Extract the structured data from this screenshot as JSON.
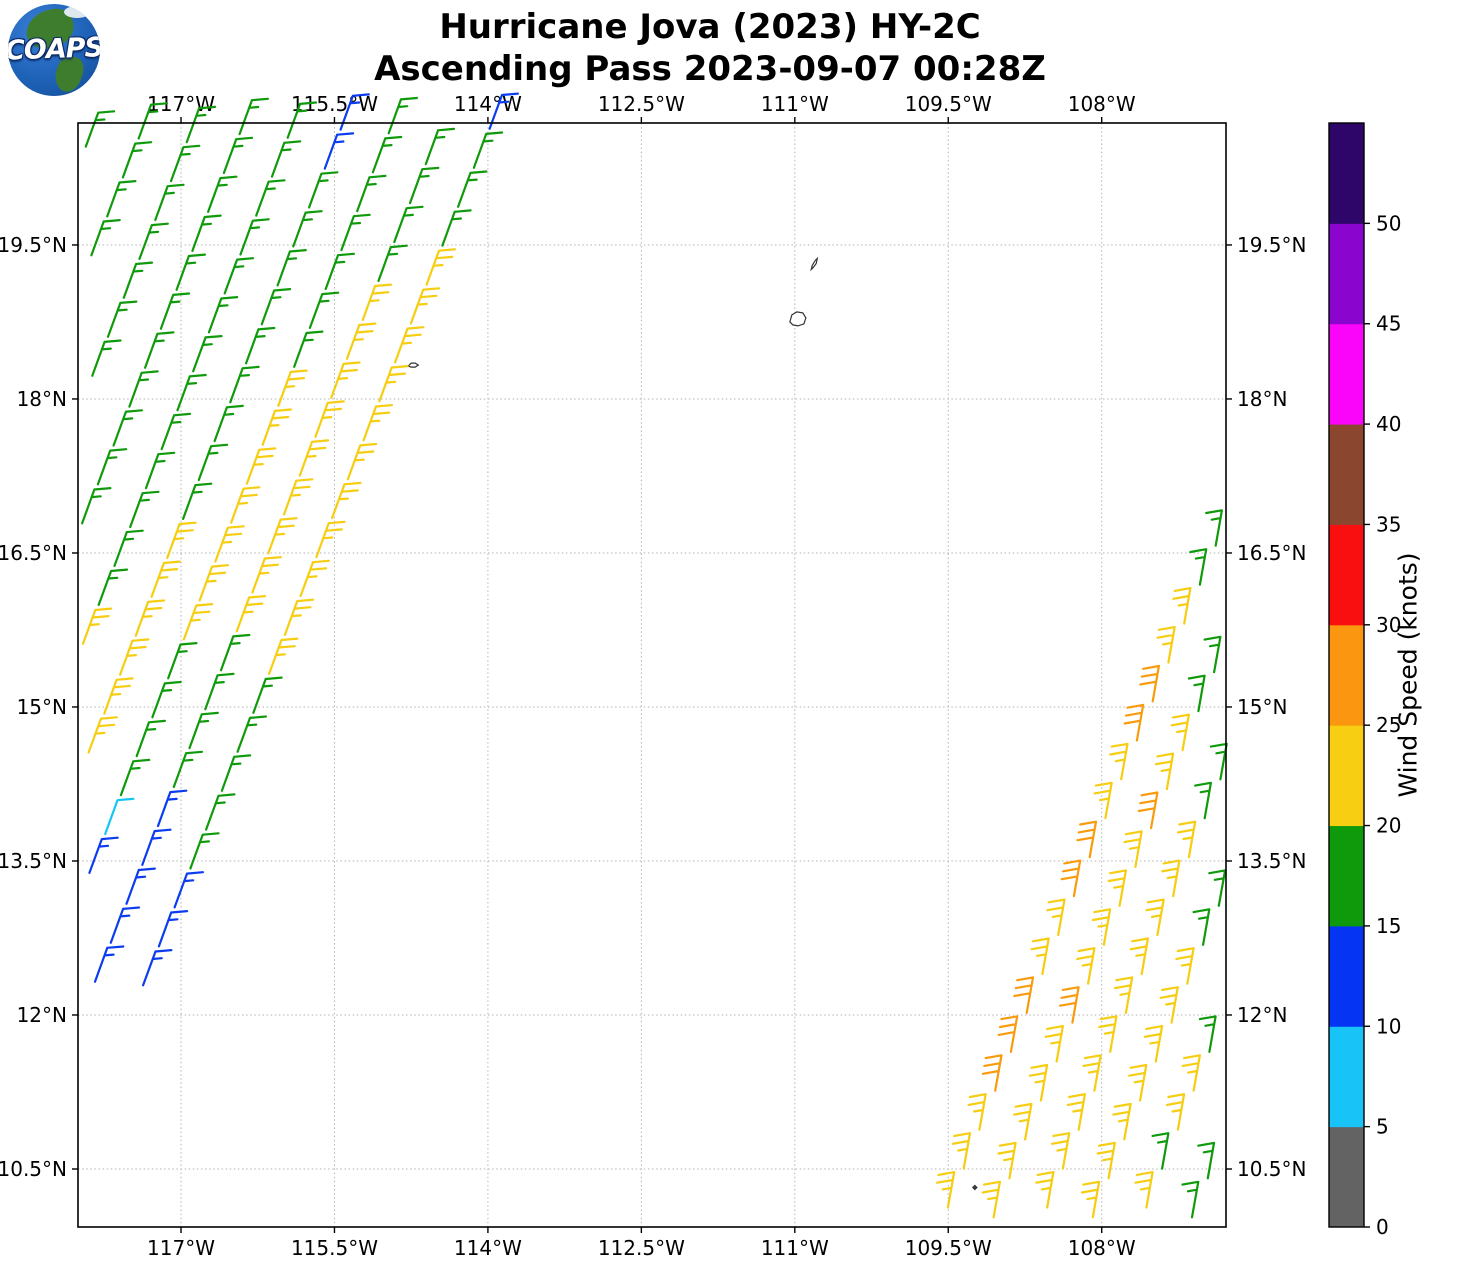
{
  "logo": {
    "text": "COAPS"
  },
  "title": {
    "line1": "Hurricane Jova (2023) HY-2C",
    "line2": "Ascending Pass 2023-09-07 00:28Z"
  },
  "chart_data": {
    "type": "wind_barb_map",
    "projection": "PlateCarree",
    "lon_range": [
      -118.007,
      -106.785
    ],
    "lat_range": [
      9.935,
      20.688
    ],
    "grid": "dashed",
    "x_ticks": {
      "labels": [
        "117°W",
        "115.5°W",
        "114°W",
        "112.5°W",
        "111°W",
        "109.5°W",
        "108°W"
      ],
      "lons": [
        -117,
        -115.5,
        -114,
        -112.5,
        -111,
        -109.5,
        -108
      ]
    },
    "y_ticks": {
      "labels": [
        "19.5°N",
        "18°N",
        "16.5°N",
        "15°N",
        "13.5°N",
        "12°N",
        "10.5°N"
      ],
      "lats": [
        19.5,
        18,
        16.5,
        15,
        13.5,
        12,
        10.5
      ]
    },
    "colorbar": {
      "label": "Wind Speed (knots)",
      "tick_labels": [
        "0",
        "5",
        "10",
        "15",
        "20",
        "25",
        "30",
        "35",
        "40",
        "45",
        "50"
      ],
      "tick_values": [
        0,
        5,
        10,
        15,
        20,
        25,
        30,
        35,
        40,
        45,
        50
      ],
      "segment_colors_bottom_to_top": [
        "#636363",
        "#17c3f7",
        "#0535f2",
        "#0f9a0b",
        "#f8ce12",
        "#fb9610",
        "#f90f0f",
        "#8b4630",
        "#fa05fa",
        "#8a06cf",
        "#2e0669"
      ],
      "segment_ranges_knots": [
        "0-5",
        "5-10",
        "10-15",
        "15-20",
        "20-25",
        "25-30",
        "30-35",
        "35-40",
        "40-45",
        "45-50",
        ">50"
      ]
    },
    "speed_classes": {
      "G": {
        "color": "#0f9a0b",
        "knots": 15,
        "fulls": 1,
        "halves": 1
      },
      "Y": {
        "color": "#f6cd11",
        "knots": 25,
        "fulls": 2,
        "halves": 1
      },
      "B": {
        "color": "#0b3cf0",
        "knots": 15,
        "fulls": 1,
        "halves": 1
      },
      "C": {
        "color": "#15c5f5",
        "knots": 10,
        "fulls": 1,
        "halves": 0
      },
      "O": {
        "color": "#f99b0c",
        "knots": 30,
        "fulls": 3,
        "halves": 0
      }
    },
    "swaths": [
      {
        "name": "western-swath",
        "staff_angle_deg": 70,
        "feather_angle_deg": 5,
        "origin_lonlat": [
          -113.96,
          20.688
        ],
        "along_step_lonlat": [
          -0.15396,
          -0.37918
        ],
        "cross_step_lonlat": [
          -0.41642,
          0.16802
        ],
        "columns": [
          {
            "phase": 0.15,
            "pattern": "BGGGYYYYYYYYYYYGGGGGBBB"
          },
          {
            "phase": 0.5,
            "pattern": "GGGGGYYYYYYYYYGGGGBBBBB"
          },
          {
            "phase": 0.15,
            "pattern": "GGGGGGGGYYYYYYYGGGGCBB"
          },
          {
            "phase": 0.5,
            "pattern": "GBBGGGGGGGGGYYYYYY"
          },
          {
            "phase": 0.15,
            "pattern": "GGGGGGGGGGGGGGGY"
          },
          {
            "phase": 0.5,
            "pattern": "GGGGGGGGGGGGG"
          },
          {
            "phase": 0.15,
            "pattern": "GGGGGGGGGGG"
          },
          {
            "phase": 0.5,
            "pattern": "GGGGGGG"
          },
          {
            "phase": 0.15,
            "pattern": "GGGGG"
          }
        ]
      },
      {
        "name": "eastern-swath",
        "staff_angle_deg": 80,
        "feather_angle_deg": 190,
        "origin_lonlat": [
          -109.58,
          9.935
        ],
        "along_step_lonlat": [
          0.15396,
          0.37918
        ],
        "cross_step_lonlat": [
          0.48489,
          0
        ],
        "columns": [
          {
            "phase": 0.5,
            "pattern": "YYYOOOYYOOYYOOYYGG"
          },
          {
            "phase": 0.25,
            "pattern": "YYYYYOYYYYOYYGG"
          },
          {
            "phase": 0.5,
            "pattern": "YYYYYYYYYYGG"
          },
          {
            "phase": 0.25,
            "pattern": "YYYYYYYGG"
          },
          {
            "phase": 0.5,
            "pattern": "YGYYGG"
          },
          {
            "phase": 0.25,
            "pattern": "GGG"
          }
        ]
      }
    ],
    "islands": [
      {
        "name": "Socorro Island",
        "lon": -110.97,
        "lat": 18.78,
        "fill": "#ffffff",
        "pts": [
          [
            -8,
            3
          ],
          [
            -6,
            -4
          ],
          [
            -1,
            -7
          ],
          [
            5,
            -6
          ],
          [
            8,
            -1
          ],
          [
            6,
            5
          ],
          [
            0,
            7
          ],
          [
            -5,
            6
          ]
        ]
      },
      {
        "name": "San Benedicto Island",
        "lon": -110.82,
        "lat": 19.31,
        "fill": "#ffffff",
        "pts": [
          [
            -2,
            5
          ],
          [
            -1,
            1
          ],
          [
            2,
            -4
          ],
          [
            4,
            -6
          ],
          [
            3,
            -1
          ],
          [
            0,
            3
          ]
        ]
      },
      {
        "name": "Clarion Island",
        "lon": -114.73,
        "lat": 18.33,
        "fill": "#ffffff",
        "pts": [
          [
            -5,
            1
          ],
          [
            -2,
            -2
          ],
          [
            2,
            -2
          ],
          [
            5,
            0
          ],
          [
            2,
            2
          ],
          [
            -2,
            2
          ]
        ]
      },
      {
        "name": "Clipperton Island",
        "lon": -109.24,
        "lat": 10.32,
        "fill": "#444444",
        "pts": [
          [
            -2,
            0
          ],
          [
            0,
            -2
          ],
          [
            2,
            0
          ],
          [
            0,
            2
          ]
        ]
      }
    ]
  }
}
